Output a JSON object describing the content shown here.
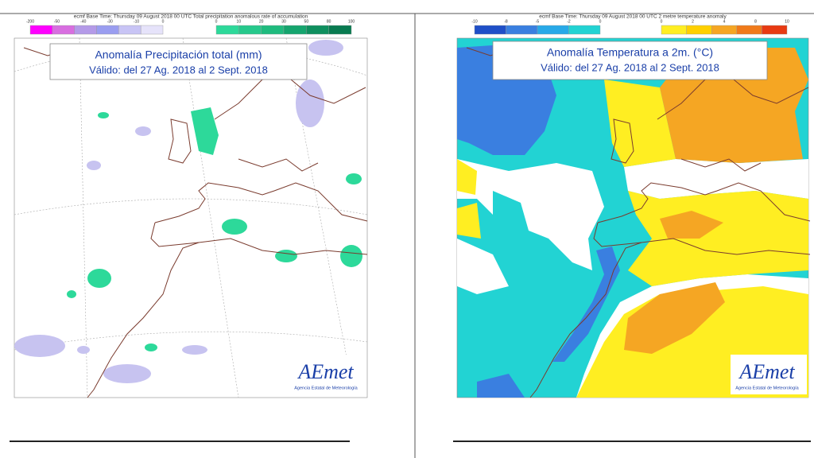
{
  "panels": [
    {
      "header": "ecmf  Base Time: Thursday 09 August 2018 00 UTC Total precipitation anomalous rate of accumulation",
      "title": "Anomalía Precipitación total (mm)",
      "subtitle": "Válido: del 27 Ag. 2018 al 2 Sept. 2018",
      "colorbar_negative": [
        "-200",
        "-50",
        "-40",
        "-30",
        "-10",
        "0"
      ],
      "colorbar_positive": [
        "0",
        "10",
        "20",
        "30",
        "50",
        "80",
        "100"
      ],
      "logo": "AEmet",
      "logo_caption": "Agencia Estatal de Meteorología"
    },
    {
      "header": "ecmf  Base Time: Thursday 09 August 2018 00 UTC 2 metre temperature anomaly",
      "title": "Anomalía Temperatura a 2m. (°C)",
      "subtitle": "Válido: del 27 Ag. 2018 al 2 Sept. 2018",
      "colorbar_negative": [
        "-10",
        "-8",
        "-5",
        "-2",
        "0"
      ],
      "colorbar_positive": [
        "0",
        "2",
        "4",
        "8",
        "10"
      ],
      "logo": "AEmet",
      "logo_caption": "Agencia Estatal de Meteorología"
    }
  ]
}
